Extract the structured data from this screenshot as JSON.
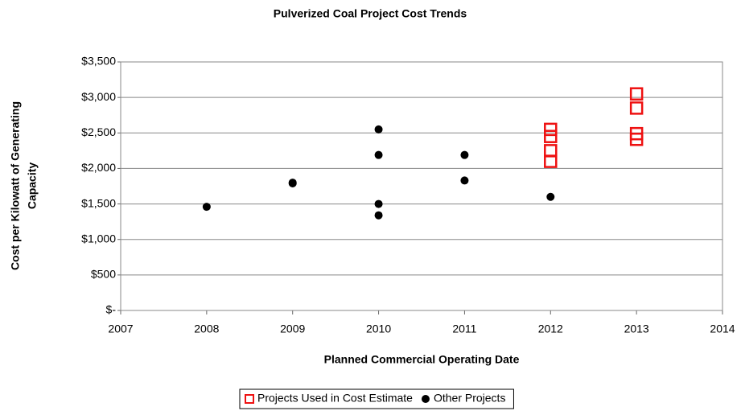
{
  "chart_data": {
    "type": "scatter",
    "title": "Pulverized Coal Project Cost Trends",
    "xlabel": "Planned Commercial Operating Date",
    "ylabel": [
      "Cost per Kilowatt of Generating",
      "Capacity"
    ],
    "xlim": [
      2007,
      2014
    ],
    "xticks": [
      2007,
      2008,
      2009,
      2010,
      2011,
      2012,
      2013,
      2014
    ],
    "ylim": [
      0,
      3500
    ],
    "yticks": [
      {
        "value": 0,
        "label": "$-"
      },
      {
        "value": 500,
        "label": "$500"
      },
      {
        "value": 1000,
        "label": "$1,000"
      },
      {
        "value": 1500,
        "label": "$1,500"
      },
      {
        "value": 2000,
        "label": "$2,000"
      },
      {
        "value": 2500,
        "label": "$2,500"
      },
      {
        "value": 3000,
        "label": "$3,000"
      },
      {
        "value": 3500,
        "label": "$3,500"
      }
    ],
    "grid": true,
    "legend": "bottom",
    "series": [
      {
        "name": "Projects Used in Cost Estimate",
        "color": "#ee1111",
        "marker": "square",
        "x": [
          2012,
          2012,
          2012,
          2012,
          2013,
          2013,
          2013,
          2013
        ],
        "values": [
          2550,
          2450,
          2250,
          2100,
          3050,
          2850,
          2490,
          2410
        ]
      },
      {
        "name": "Other Projects",
        "color": "#000000",
        "marker": "circle",
        "x": [
          2008,
          2009,
          2009,
          2010,
          2010,
          2010,
          2010,
          2011,
          2011,
          2012
        ],
        "values": [
          1460,
          1790,
          1800,
          2550,
          2190,
          1500,
          1340,
          2190,
          1830,
          1600
        ]
      }
    ]
  }
}
